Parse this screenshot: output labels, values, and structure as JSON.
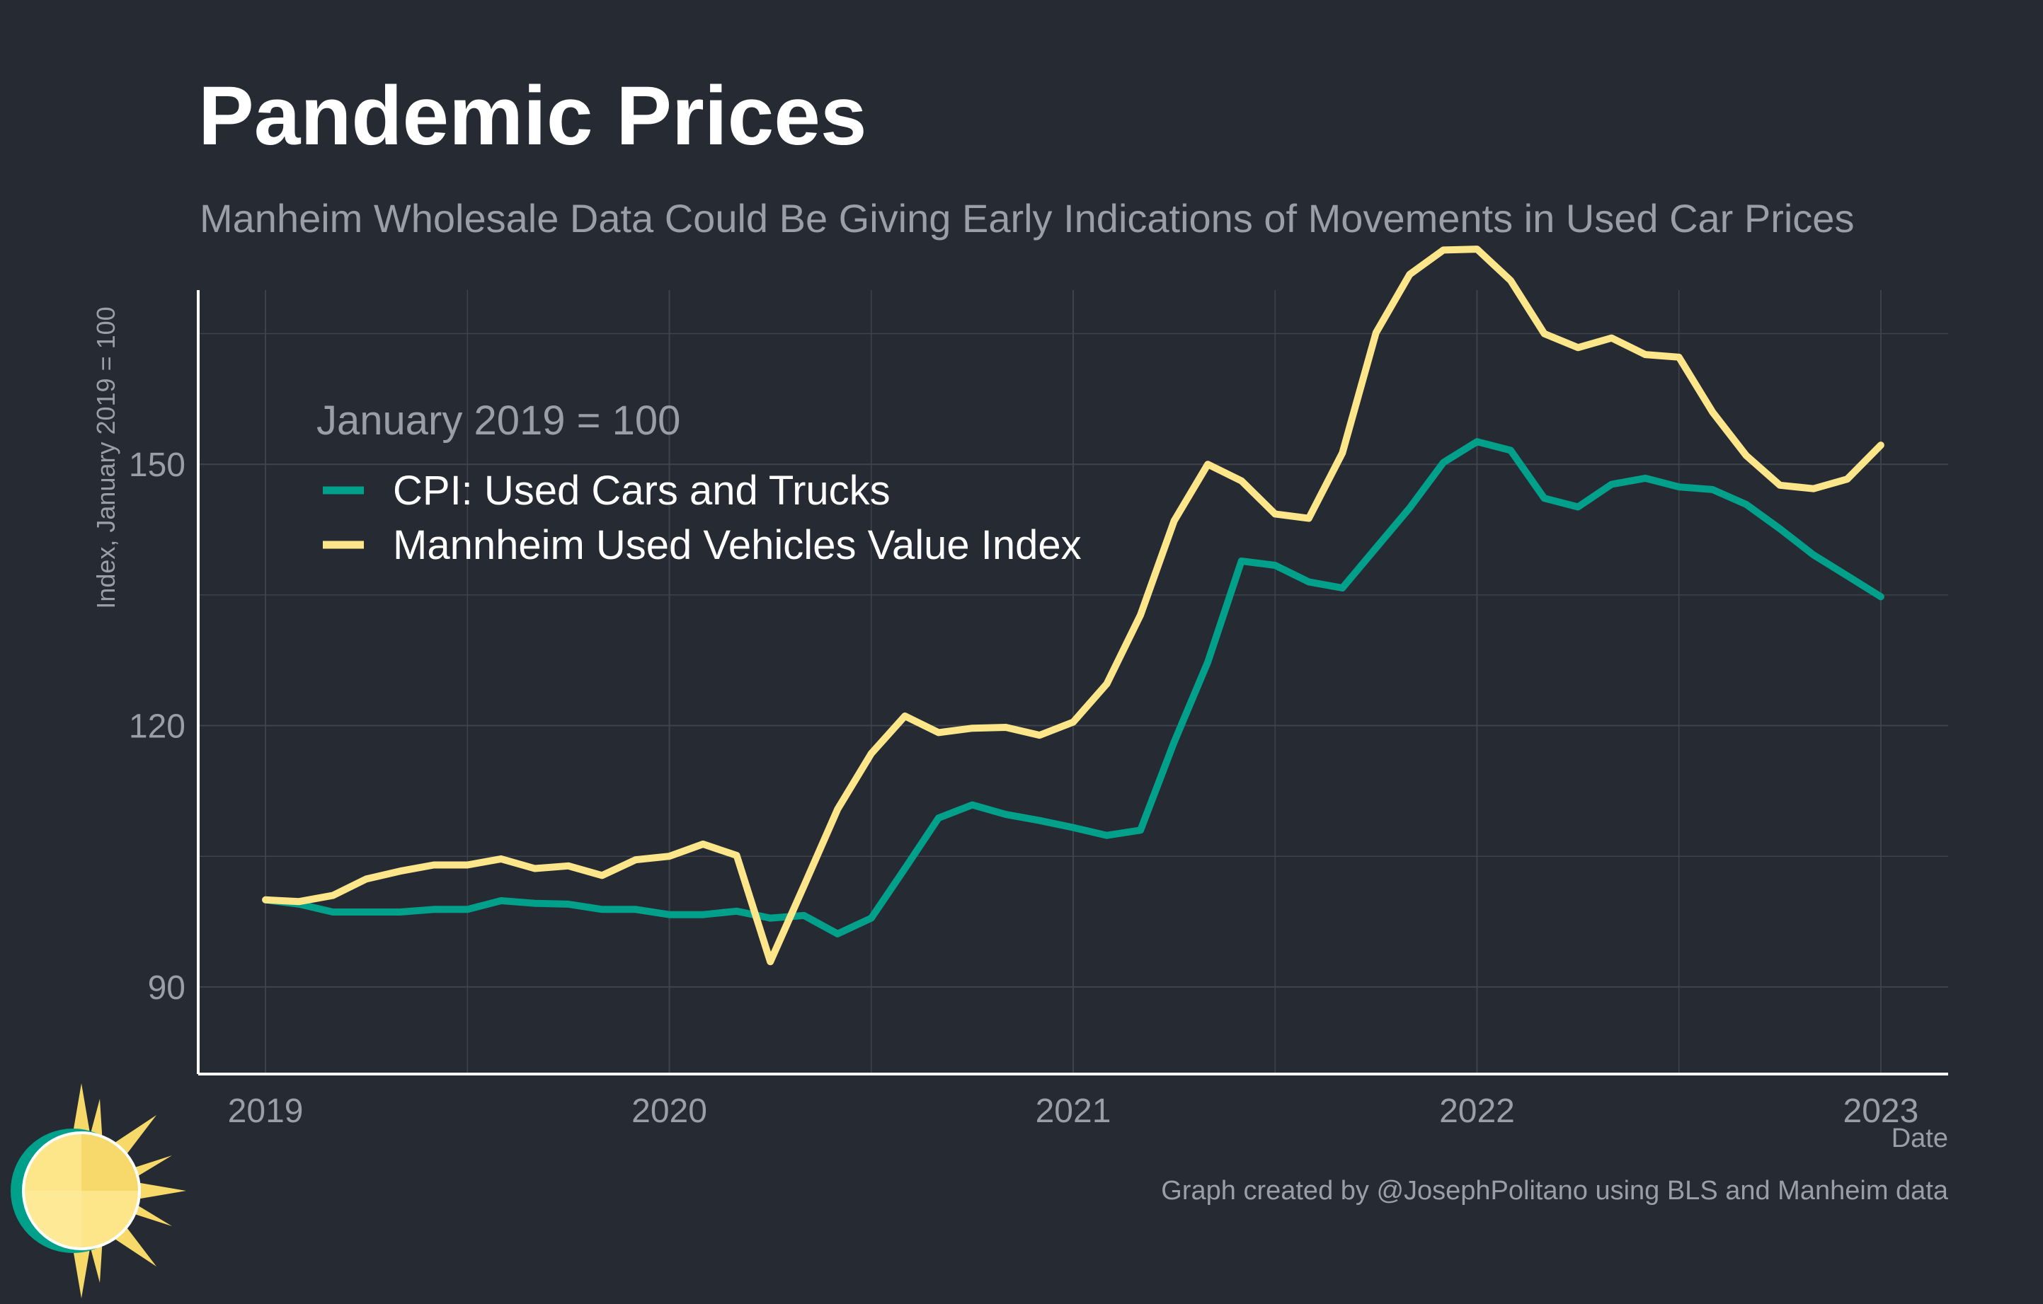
{
  "title": "Pandemic Prices",
  "subtitle": "Manheim Wholesale Data Could Be Giving Early Indications of Movements in Used Car Prices",
  "caption": "Graph created by @JosephPolitano using BLS and Manheim data",
  "colors": {
    "background": "#252a33",
    "grid": "#3e434c",
    "axis": "#ffffff",
    "text_muted": "#9a9ea6",
    "legend_text": "#ffffff"
  },
  "chart_data": {
    "type": "line",
    "title": "Pandemic Prices",
    "subtitle": "Manheim Wholesale Data Could Be Giving Early Indications of Movements in Used Car Prices",
    "xlabel": "Date",
    "ylabel": "Index, January 2019 = 100",
    "legend_title": "January 2019 = 100",
    "legend_position": "top-left",
    "grid": true,
    "xlim": [
      "2018-11",
      "2023-03"
    ],
    "ylim": [
      80,
      170
    ],
    "x_ticks": [
      2019,
      2020,
      2021,
      2022,
      2023
    ],
    "x_tick_labels": [
      "2019",
      "2020",
      "2021",
      "2022",
      "2023"
    ],
    "y_ticks": [
      90,
      120,
      150
    ],
    "y_tick_labels": [
      "90",
      "120",
      "150"
    ],
    "x": [
      "2019-01",
      "2019-02",
      "2019-03",
      "2019-04",
      "2019-05",
      "2019-06",
      "2019-07",
      "2019-08",
      "2019-09",
      "2019-10",
      "2019-11",
      "2019-12",
      "2020-01",
      "2020-02",
      "2020-03",
      "2020-04",
      "2020-05",
      "2020-06",
      "2020-07",
      "2020-08",
      "2020-09",
      "2020-10",
      "2020-11",
      "2020-12",
      "2021-01",
      "2021-02",
      "2021-03",
      "2021-04",
      "2021-05",
      "2021-06",
      "2021-07",
      "2021-08",
      "2021-09",
      "2021-10",
      "2021-11",
      "2021-12",
      "2022-01",
      "2022-02",
      "2022-03",
      "2022-04",
      "2022-05",
      "2022-06",
      "2022-07",
      "2022-08",
      "2022-09",
      "2022-10",
      "2022-11",
      "2022-12",
      "2023-01"
    ],
    "series": [
      {
        "name": "CPI: Used Cars and Trucks",
        "color": "#00a08a",
        "values": [
          100,
          99.5,
          98.6,
          98.6,
          98.6,
          98.9,
          98.9,
          99.9,
          99.6,
          99.5,
          98.9,
          98.9,
          98.3,
          98.3,
          98.7,
          97.9,
          98.2,
          96.1,
          97.9,
          103.6,
          109.4,
          110.9,
          109.8,
          109.1,
          108.3,
          107.4,
          108.0,
          118.1,
          127.3,
          138.9,
          138.4,
          136.5,
          135.8,
          140.4,
          145.0,
          150.2,
          152.6,
          151.6,
          146.1,
          145.1,
          147.7,
          148.4,
          147.4,
          147.1,
          145.4,
          142.6,
          139.6,
          137.2,
          134.8
        ]
      },
      {
        "name": "Mannheim Used Vehicles Value Index",
        "color": "#fde68a",
        "values": [
          100,
          99.8,
          100.5,
          102.4,
          103.3,
          104.0,
          104.0,
          104.7,
          103.6,
          103.9,
          102.8,
          104.6,
          105.0,
          106.4,
          105.1,
          92.9,
          101.6,
          110.4,
          116.8,
          121.1,
          119.2,
          119.7,
          119.8,
          118.9,
          120.4,
          124.8,
          132.7,
          143.5,
          150.0,
          148.1,
          144.3,
          143.8,
          151.3,
          165.1,
          171.8,
          174.6,
          174.7,
          171.1,
          165.0,
          163.4,
          164.5,
          162.6,
          162.3,
          156.0,
          151.0,
          147.6,
          147.2,
          148.3,
          152.2
        ]
      }
    ]
  }
}
